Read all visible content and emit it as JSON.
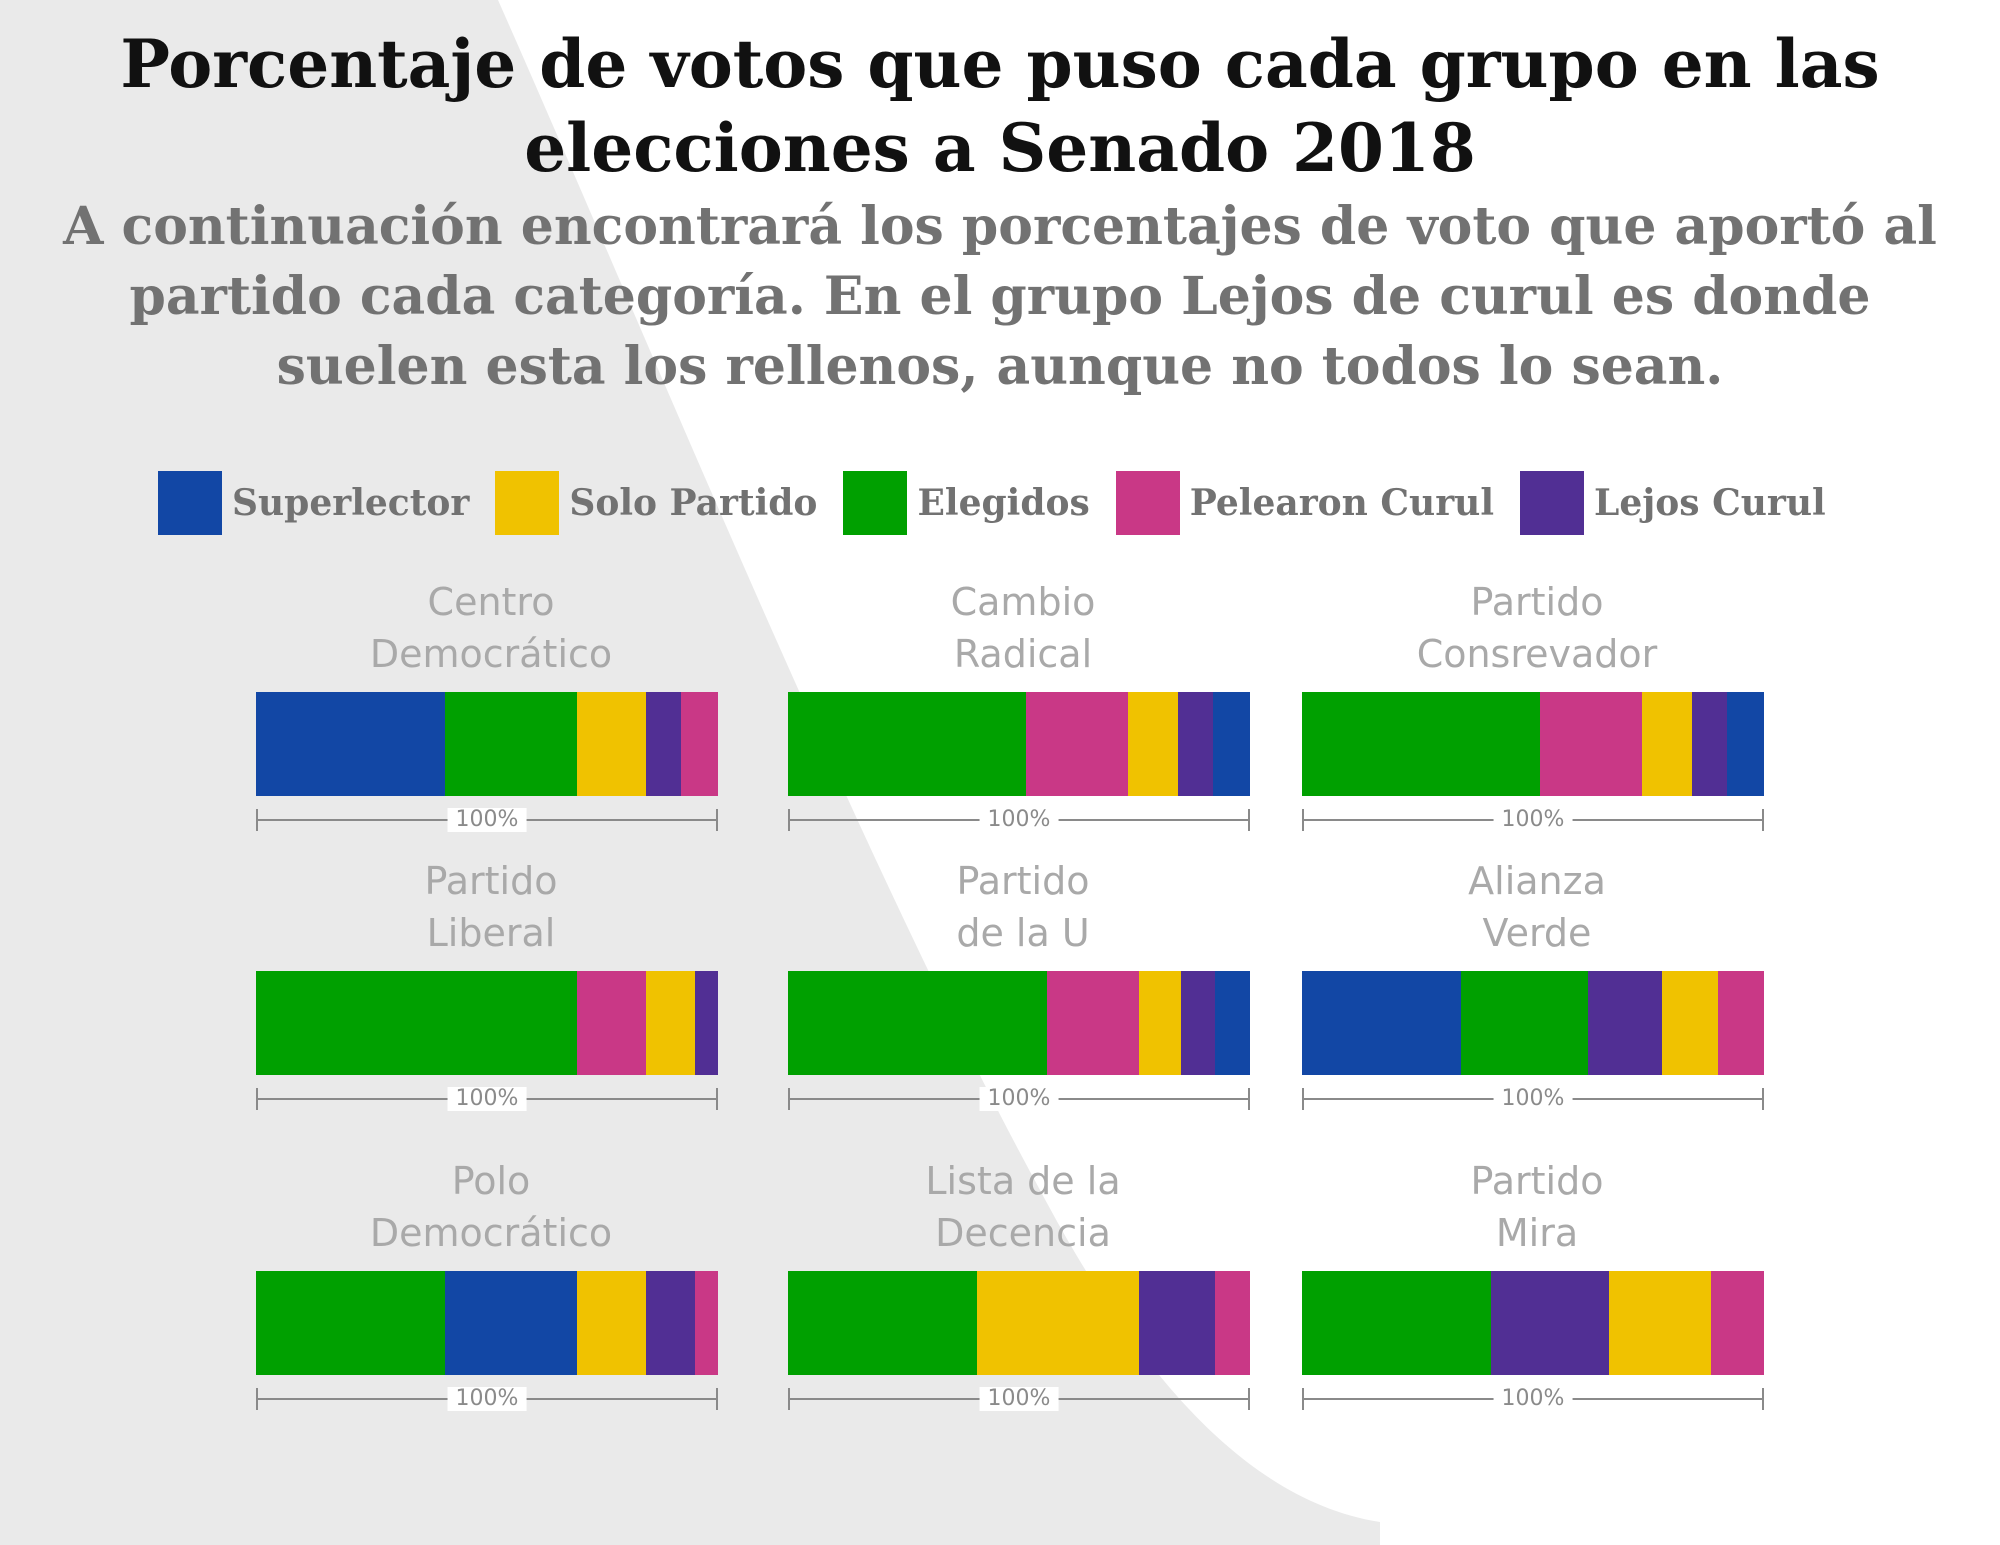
{
  "colors": {
    "background_shape": "#eaeaea",
    "title": "#111111",
    "subtitle": "#727272",
    "party_name": "#a9a9a9",
    "scale": "#8a8a8a"
  },
  "title": "Porcentaje de votos que puso cada grupo en las elecciones a Senado 2018",
  "subtitle": "A continuación encontrará los porcentajes de voto que aportó al partido cada categoría. En el grupo Lejos de curul es donde suelen esta los rellenos, aunque no todos lo sean.",
  "legend": [
    {
      "key": "superlector",
      "label": "Superlector",
      "color": "#1247a5"
    },
    {
      "key": "solo_partido",
      "label": "Solo Partido",
      "color": "#f0c200"
    },
    {
      "key": "elegidos",
      "label": "Elegidos",
      "color": "#00a000"
    },
    {
      "key": "pelearon_curul",
      "label": "Pelearon Curul",
      "color": "#c93886"
    },
    {
      "key": "lejos_curul",
      "label": "Lejos Curul",
      "color": "#512f94"
    }
  ],
  "chart_data": {
    "type": "bar",
    "orientation": "horizontal-stacked-100",
    "scale_label": "100%",
    "panels": [
      {
        "name_lines": [
          "Centro",
          "Democrático"
        ],
        "segments": [
          {
            "category": "superlector",
            "value": 41
          },
          {
            "category": "elegidos",
            "value": 28.5
          },
          {
            "category": "solo_partido",
            "value": 15
          },
          {
            "category": "lejos_curul",
            "value": 7.5
          },
          {
            "category": "pelearon_curul",
            "value": 8
          }
        ]
      },
      {
        "name_lines": [
          "Cambio",
          "Radical"
        ],
        "segments": [
          {
            "category": "elegidos",
            "value": 51.5
          },
          {
            "category": "pelearon_curul",
            "value": 22
          },
          {
            "category": "solo_partido",
            "value": 11
          },
          {
            "category": "lejos_curul",
            "value": 7.5
          },
          {
            "category": "superlector",
            "value": 8
          }
        ]
      },
      {
        "name_lines": [
          "Partido",
          "Consrevador"
        ],
        "segments": [
          {
            "category": "elegidos",
            "value": 51.5
          },
          {
            "category": "pelearon_curul",
            "value": 22
          },
          {
            "category": "solo_partido",
            "value": 11
          },
          {
            "category": "lejos_curul",
            "value": 7.5
          },
          {
            "category": "superlector",
            "value": 8
          }
        ]
      },
      {
        "name_lines": [
          "Partido",
          "Liberal"
        ],
        "segments": [
          {
            "category": "elegidos",
            "value": 69.5
          },
          {
            "category": "pelearon_curul",
            "value": 15
          },
          {
            "category": "solo_partido",
            "value": 10.5
          },
          {
            "category": "lejos_curul",
            "value": 5
          }
        ]
      },
      {
        "name_lines": [
          "Partido",
          "de la U"
        ],
        "segments": [
          {
            "category": "elegidos",
            "value": 56
          },
          {
            "category": "pelearon_curul",
            "value": 20
          },
          {
            "category": "solo_partido",
            "value": 9
          },
          {
            "category": "lejos_curul",
            "value": 7.5
          },
          {
            "category": "superlector",
            "value": 7.5
          }
        ]
      },
      {
        "name_lines": [
          "Alianza",
          "Verde"
        ],
        "segments": [
          {
            "category": "superlector",
            "value": 34.5
          },
          {
            "category": "elegidos",
            "value": 27.5
          },
          {
            "category": "lejos_curul",
            "value": 16
          },
          {
            "category": "solo_partido",
            "value": 12
          },
          {
            "category": "pelearon_curul",
            "value": 10
          }
        ]
      },
      {
        "name_lines": [
          "Polo",
          "Democrático"
        ],
        "segments": [
          {
            "category": "elegidos",
            "value": 41
          },
          {
            "category": "superlector",
            "value": 28.5
          },
          {
            "category": "solo_partido",
            "value": 15
          },
          {
            "category": "lejos_curul",
            "value": 10.5
          },
          {
            "category": "pelearon_curul",
            "value": 5
          }
        ]
      },
      {
        "name_lines": [
          "Lista de la",
          "Decencia"
        ],
        "segments": [
          {
            "category": "elegidos",
            "value": 41
          },
          {
            "category": "solo_partido",
            "value": 35
          },
          {
            "category": "lejos_curul",
            "value": 16.5
          },
          {
            "category": "pelearon_curul",
            "value": 7.5
          }
        ]
      },
      {
        "name_lines": [
          "Partido",
          "Mira"
        ],
        "segments": [
          {
            "category": "elegidos",
            "value": 41
          },
          {
            "category": "lejos_curul",
            "value": 25.5
          },
          {
            "category": "solo_partido",
            "value": 22
          },
          {
            "category": "pelearon_curul",
            "value": 11.5
          }
        ]
      }
    ]
  }
}
